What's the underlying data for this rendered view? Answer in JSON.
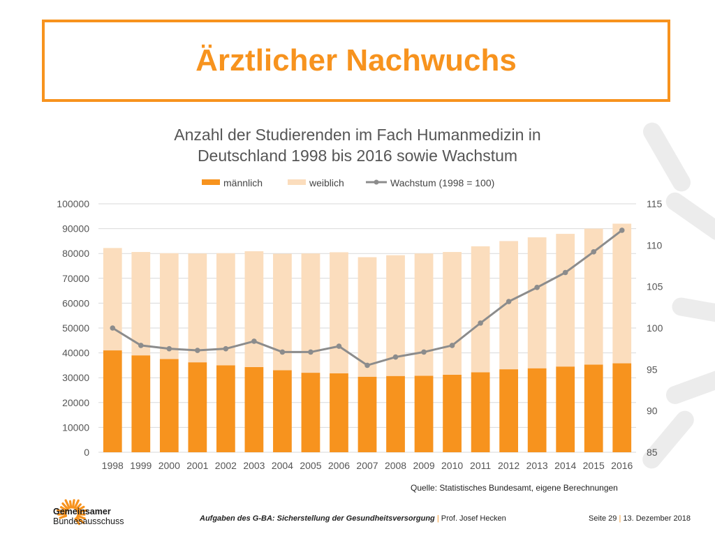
{
  "slide": {
    "title": "Ärztlicher Nachwuchs",
    "accent_color": "#f7931e",
    "source": "Quelle: Statistisches Bundesamt, eigene Berechnungen"
  },
  "footer": {
    "org_line1": "Gemeinsamer",
    "org_line2": "Bundesausschuss",
    "presentation": "Aufgaben des G-BA: Sicherstellung der Gesundheitsversorgung",
    "separator": "|",
    "author": "Prof. Josef Hecken",
    "page": "Seite 29",
    "date": "13. Dezember 2018"
  },
  "chart_data": {
    "type": "bar",
    "title": "Anzahl der Studierenden im Fach Humanmedizin in Deutschland 1998 bis 2016 sowie Wachstum",
    "title_line1": "Anzahl der Studierenden im Fach Humanmedizin in",
    "title_line2": "Deutschland 1998 bis 2016 sowie Wachstum",
    "stacked": true,
    "categories": [
      "1998",
      "1999",
      "2000",
      "2001",
      "2002",
      "2003",
      "2004",
      "2005",
      "2006",
      "2007",
      "2008",
      "2009",
      "2010",
      "2011",
      "2012",
      "2013",
      "2014",
      "2015",
      "2016"
    ],
    "series": [
      {
        "name": "männlich",
        "type": "bar",
        "axis": "left",
        "color": "#f7931e",
        "values": [
          41000,
          39000,
          37500,
          36200,
          35000,
          34300,
          33000,
          32000,
          31800,
          30400,
          30700,
          30800,
          31200,
          32200,
          33400,
          33800,
          34500,
          35300,
          35800
        ]
      },
      {
        "name": "weiblich",
        "type": "bar",
        "axis": "left",
        "color": "#fbddbd",
        "values": [
          41200,
          41600,
          42600,
          43800,
          45100,
          46600,
          46900,
          48000,
          48700,
          48100,
          48600,
          49200,
          49400,
          50700,
          51600,
          52700,
          53400,
          54700,
          56200
        ]
      },
      {
        "name": "Wachstum (1998 = 100)",
        "type": "line",
        "axis": "right",
        "color": "#8c8c8c",
        "values": [
          100,
          97.9,
          97.5,
          97.3,
          97.5,
          98.4,
          97.1,
          97.1,
          97.8,
          95.5,
          96.5,
          97.1,
          97.9,
          100.6,
          103.2,
          104.9,
          106.7,
          109.2,
          111.8
        ]
      }
    ],
    "ylim": [
      0,
      100000
    ],
    "yticks": [
      "0",
      "10000",
      "20000",
      "30000",
      "40000",
      "50000",
      "60000",
      "70000",
      "80000",
      "90000",
      "100000"
    ],
    "ylim_right": [
      85,
      115
    ],
    "yticks_right": [
      "85",
      "90",
      "95",
      "100",
      "105",
      "110",
      "115"
    ],
    "grid": true,
    "legend": "top-center"
  }
}
